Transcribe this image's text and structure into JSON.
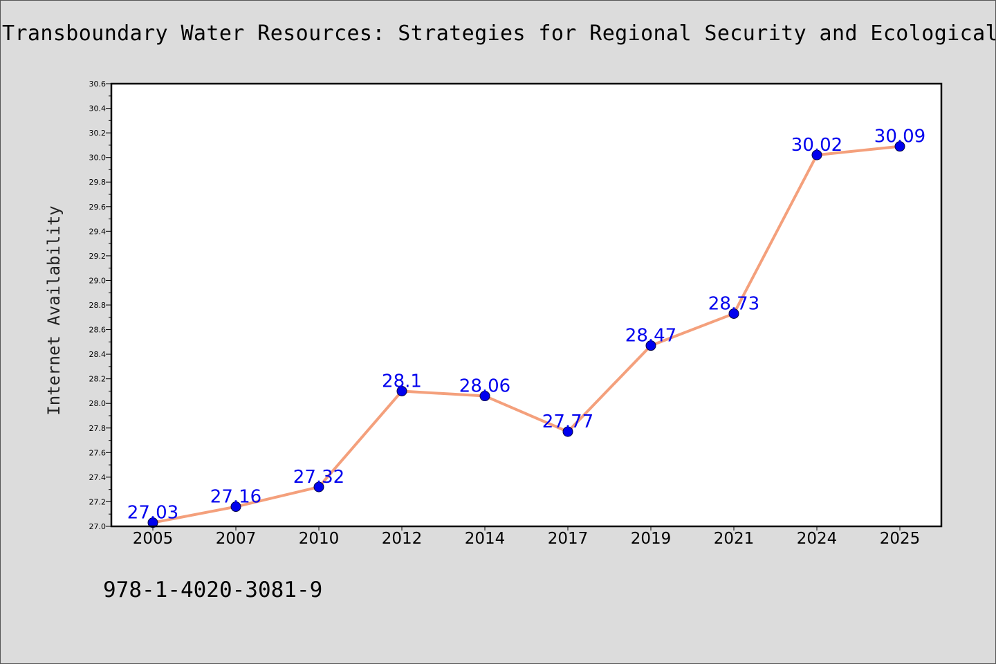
{
  "title": "Transboundary Water Resources: Strategies for Regional Security and Ecological S",
  "isbn": "978-1-4020-3081-9",
  "chart_data": {
    "type": "line",
    "title": "Transboundary Water Resources: Strategies for Regional Security and Ecological S",
    "ylabel": "Internet Availability",
    "xlabel": "",
    "categories": [
      "2005",
      "2007",
      "2010",
      "2012",
      "2014",
      "2017",
      "2019",
      "2021",
      "2024",
      "2025"
    ],
    "values": [
      27.03,
      27.16,
      27.32,
      28.1,
      28.06,
      27.77,
      28.47,
      28.73,
      30.02,
      30.09
    ],
    "data_labels": [
      "27.03",
      "27.16",
      "27.32",
      "28.1",
      "28.06",
      "27.77",
      "28.47",
      "28.73",
      "30.02",
      "30.09"
    ],
    "ylim": [
      27.0,
      30.6
    ],
    "yticks": [
      "27.0",
      "27.2",
      "27.4",
      "27.6",
      "27.8",
      "28.0",
      "28.2",
      "28.4",
      "28.6",
      "28.8",
      "29.0",
      "29.2",
      "29.4",
      "29.6",
      "29.8",
      "30.0",
      "30.2",
      "30.4",
      "30.6"
    ],
    "grid": false,
    "legend": "none",
    "line_color": "#f4a07c",
    "marker_color": "#0000ee",
    "label_color": "#0000ee"
  }
}
